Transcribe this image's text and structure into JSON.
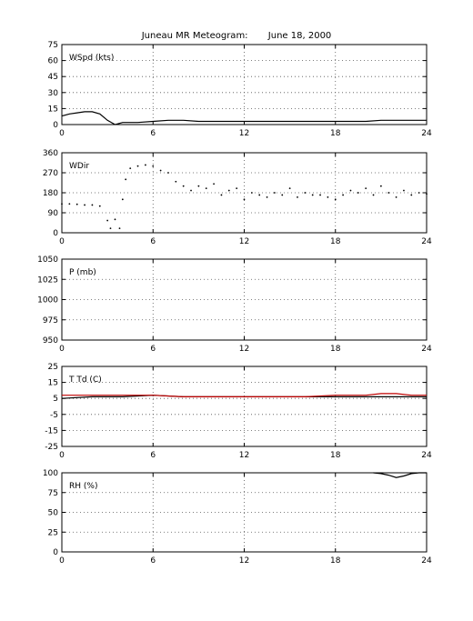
{
  "title": "Juneau MR Meteogram:       June 18, 2000",
  "colors": {
    "axis": "#000000",
    "grid": "#555555",
    "primary": "#000000",
    "secondary": "#c00000"
  },
  "chart_data": [
    {
      "type": "line",
      "label": "WSpd (kts)",
      "xlim": [
        0,
        24
      ],
      "ylim": [
        0,
        75
      ],
      "xticks": [
        "0",
        "6",
        "12",
        "18",
        "24"
      ],
      "yticks": [
        "0",
        "15",
        "30",
        "45",
        "60",
        "75"
      ],
      "grid": true,
      "series": [
        {
          "style": "line",
          "color": "#000000",
          "x": [
            0,
            0.5,
            1,
            1.5,
            2,
            2.5,
            3,
            3.5,
            4,
            5,
            6,
            7,
            8,
            9,
            10,
            11,
            12,
            13,
            14,
            15,
            16,
            17,
            18,
            19,
            20,
            21,
            22,
            23,
            24
          ],
          "y": [
            8,
            10,
            11,
            12,
            12,
            10,
            4,
            0,
            2,
            2,
            3,
            4,
            4,
            3,
            3,
            3,
            3,
            3,
            3,
            3,
            3,
            3,
            3,
            3,
            3,
            4,
            4,
            4,
            4
          ]
        }
      ]
    },
    {
      "type": "scatter",
      "label": "WDir",
      "xlim": [
        0,
        24
      ],
      "ylim": [
        0,
        360
      ],
      "xticks": [
        "0",
        "6",
        "12",
        "18",
        "24"
      ],
      "yticks": [
        "0",
        "90",
        "180",
        "270",
        "360"
      ],
      "grid": true,
      "series": [
        {
          "style": "points",
          "color": "#000000",
          "x": [
            0,
            0.5,
            1,
            1.5,
            2,
            2.5,
            3,
            3.2,
            3.5,
            3.8,
            4,
            4.2,
            4.5,
            5,
            5.5,
            6,
            6.5,
            7,
            7.5,
            8,
            8.5,
            9,
            9.5,
            10,
            10.5,
            11,
            11.5,
            12,
            12.5,
            13,
            13.5,
            14,
            14.5,
            15,
            15.5,
            16,
            16.5,
            17,
            17.5,
            18,
            18.5,
            19,
            19.5,
            20,
            20.5,
            21,
            21.5,
            22,
            22.5,
            23,
            23.5,
            24
          ],
          "y": [
            130,
            130,
            128,
            125,
            125,
            120,
            55,
            20,
            60,
            20,
            150,
            240,
            290,
            300,
            305,
            300,
            280,
            270,
            230,
            210,
            190,
            210,
            200,
            220,
            170,
            190,
            200,
            150,
            180,
            170,
            160,
            180,
            170,
            200,
            160,
            180,
            170,
            170,
            160,
            150,
            170,
            190,
            180,
            200,
            170,
            210,
            180,
            160,
            190,
            170,
            180,
            175
          ]
        }
      ]
    },
    {
      "type": "line",
      "label": "P (mb)",
      "xlim": [
        0,
        24
      ],
      "ylim": [
        950,
        1050
      ],
      "xticks": [
        "0",
        "6",
        "12",
        "18",
        "24"
      ],
      "yticks": [
        "950",
        "975",
        "1000",
        "1025",
        "1050"
      ],
      "grid": true,
      "series": []
    },
    {
      "type": "line",
      "label": "T Td (C)",
      "xlim": [
        0,
        24
      ],
      "ylim": [
        -25,
        25
      ],
      "xticks": [
        "0",
        "6",
        "12",
        "18",
        "24"
      ],
      "yticks": [
        "-25",
        "-15",
        "-5",
        "5",
        "15",
        "25"
      ],
      "grid": true,
      "series": [
        {
          "style": "line",
          "color": "#000000",
          "x": [
            0,
            2,
            4,
            6,
            8,
            10,
            12,
            14,
            16,
            18,
            20,
            21,
            22,
            23,
            24
          ],
          "y": [
            5,
            6,
            6,
            7,
            6,
            6,
            6,
            6,
            6,
            6,
            6,
            6,
            6,
            6,
            6
          ]
        },
        {
          "style": "line",
          "color": "#c00000",
          "x": [
            0,
            2,
            4,
            6,
            8,
            10,
            12,
            14,
            16,
            18,
            20,
            21,
            22,
            23,
            24
          ],
          "y": [
            7,
            7,
            7,
            7,
            6,
            6,
            6,
            6,
            6,
            7,
            7,
            8,
            8,
            7,
            7
          ]
        }
      ]
    },
    {
      "type": "line",
      "label": "RH (%)",
      "xlim": [
        0,
        24
      ],
      "ylim": [
        0,
        100
      ],
      "xticks": [
        "0",
        "6",
        "12",
        "18",
        "24"
      ],
      "yticks": [
        "0",
        "25",
        "50",
        "75",
        "100"
      ],
      "grid": true,
      "series": [
        {
          "style": "line",
          "color": "#000000",
          "x": [
            20.5,
            21,
            21.5,
            22,
            22.5,
            23,
            23.5,
            24
          ],
          "y": [
            100,
            99,
            97,
            94,
            96,
            99,
            100,
            100
          ]
        }
      ]
    }
  ]
}
